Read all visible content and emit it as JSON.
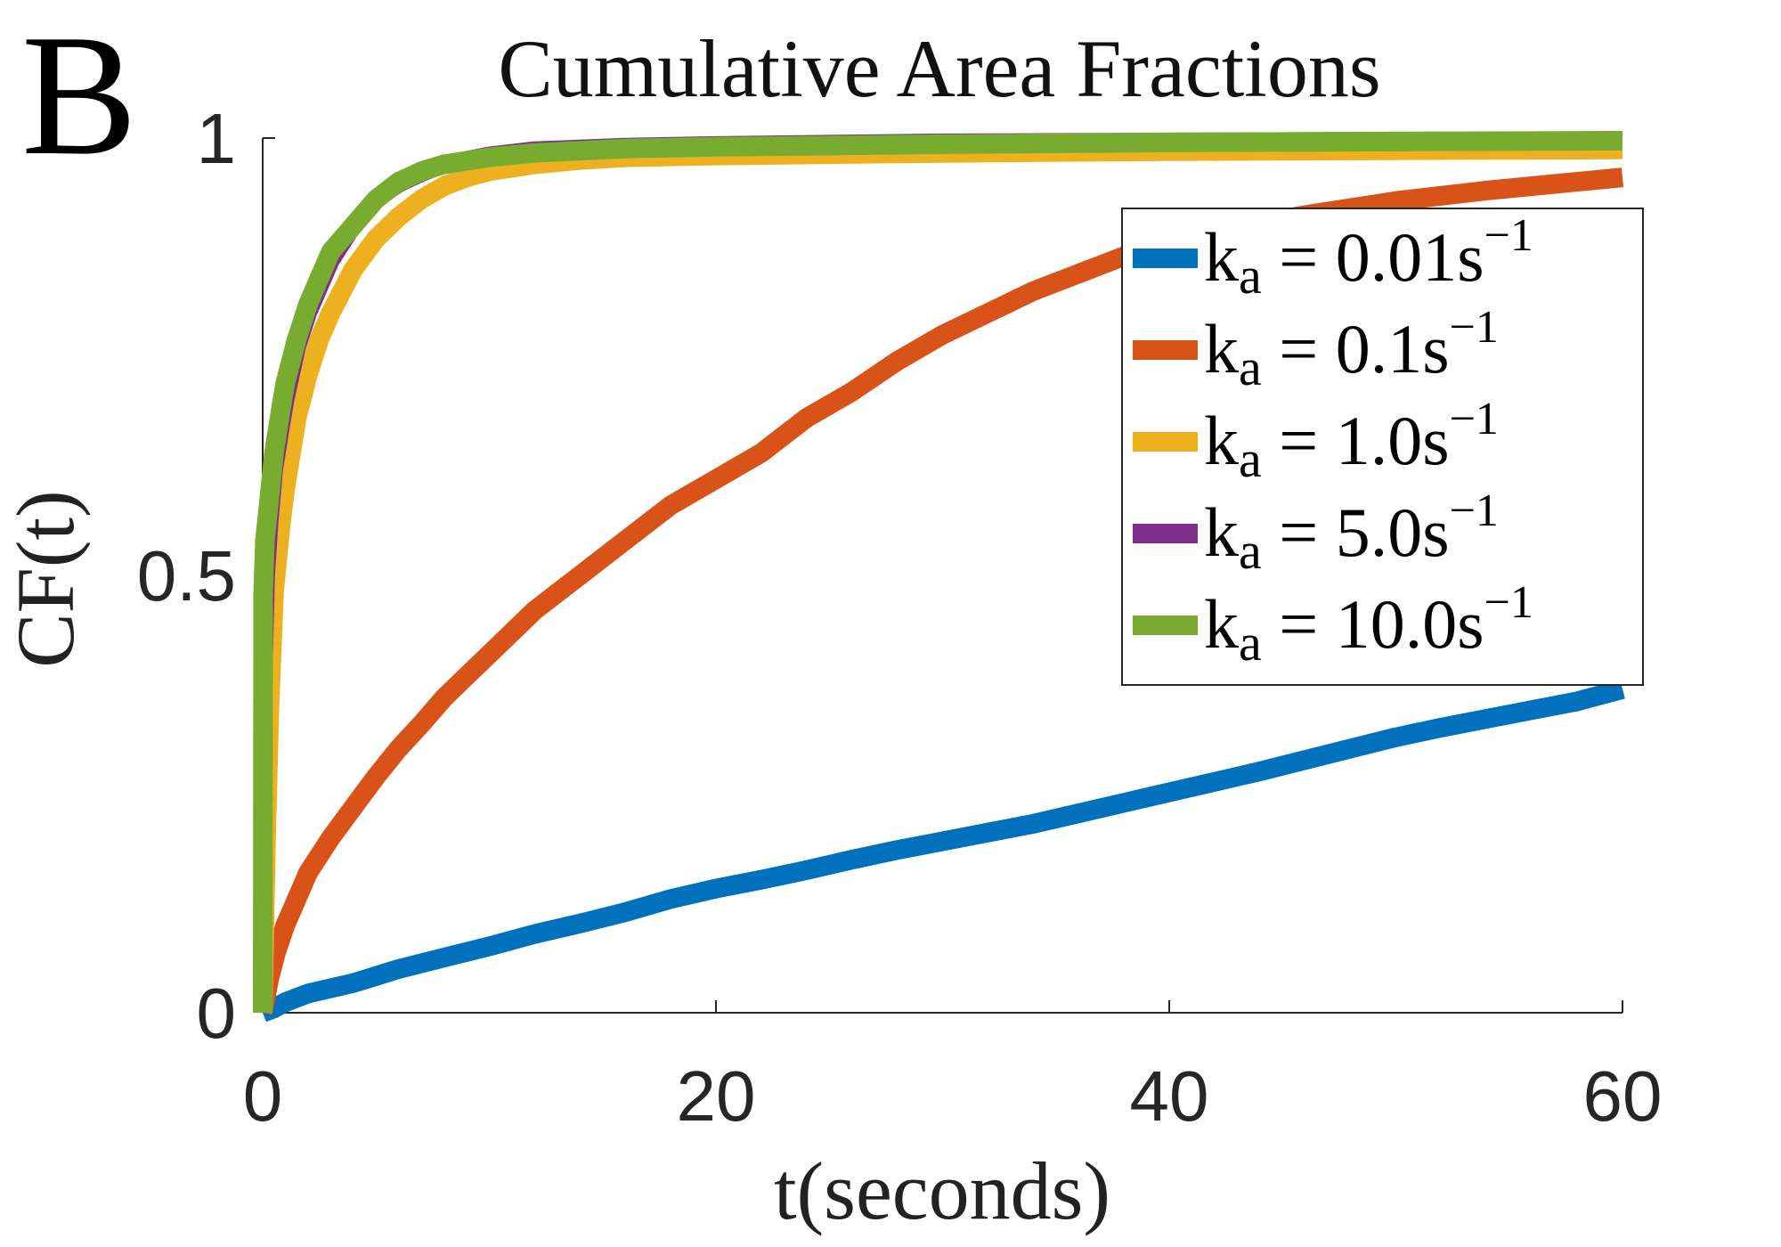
{
  "panel_label": "B",
  "chart_data": {
    "type": "line",
    "title": "Cumulative Area Fractions",
    "xlabel": "t(seconds)",
    "ylabel": "CF(t)",
    "xlim": [
      0,
      60
    ],
    "ylim": [
      0,
      1
    ],
    "xticks": [
      0,
      20,
      40,
      60
    ],
    "xtick_labels": [
      "0",
      "20",
      "40",
      "60"
    ],
    "yticks": [
      0,
      0.5,
      1
    ],
    "ytick_labels": [
      "0",
      "0.5",
      "1"
    ],
    "grid": false,
    "legend_position": "right",
    "series": [
      {
        "name": "k_a = 0.01s^-1",
        "legend": {
          "k": "k",
          "sub": "a",
          "eq": " = 0.01s",
          "sup": "−1"
        },
        "color": "#0072BD",
        "x": [
          0,
          0.5,
          1,
          2,
          3,
          4,
          5,
          6,
          8,
          10,
          12,
          14,
          16,
          18,
          20,
          22,
          24,
          26,
          28,
          30,
          32,
          34,
          36,
          38,
          40,
          42,
          44,
          46,
          48,
          50,
          52,
          54,
          56,
          58,
          60
        ],
        "y": [
          0,
          0.005,
          0.012,
          0.022,
          0.028,
          0.034,
          0.042,
          0.05,
          0.063,
          0.076,
          0.09,
          0.102,
          0.115,
          0.13,
          0.142,
          0.152,
          0.163,
          0.175,
          0.186,
          0.196,
          0.206,
          0.216,
          0.228,
          0.24,
          0.252,
          0.264,
          0.276,
          0.289,
          0.302,
          0.315,
          0.326,
          0.336,
          0.346,
          0.356,
          0.37
        ]
      },
      {
        "name": "k_a = 0.1s^-1",
        "legend": {
          "k": "k",
          "sub": "a",
          "eq": " = 0.1s",
          "sup": "−1"
        },
        "color": "#D95319",
        "x": [
          0,
          0.3,
          0.6,
          1,
          1.5,
          2,
          3,
          4,
          5,
          6,
          7,
          8,
          9,
          10,
          12,
          14,
          16,
          18,
          20,
          22,
          24,
          26,
          28,
          30,
          32,
          34,
          36,
          38,
          40,
          42,
          44,
          46,
          48,
          50,
          52,
          54,
          56,
          58,
          60
        ],
        "y": [
          0,
          0.04,
          0.07,
          0.1,
          0.13,
          0.16,
          0.2,
          0.235,
          0.27,
          0.302,
          0.33,
          0.36,
          0.385,
          0.41,
          0.46,
          0.5,
          0.54,
          0.58,
          0.61,
          0.64,
          0.68,
          0.71,
          0.745,
          0.775,
          0.8,
          0.825,
          0.845,
          0.865,
          0.88,
          0.892,
          0.903,
          0.912,
          0.92,
          0.928,
          0.934,
          0.94,
          0.945,
          0.95,
          0.955
        ]
      },
      {
        "name": "k_a = 1.0s^-1",
        "legend": {
          "k": "k",
          "sub": "a",
          "eq": " = 1.0s",
          "sup": "−1"
        },
        "color": "#EDB120",
        "x": [
          0,
          0.15,
          0.3,
          0.5,
          0.8,
          1,
          1.5,
          2,
          2.5,
          3,
          4,
          5,
          6,
          7,
          8,
          9,
          10,
          12,
          14,
          16,
          20,
          30,
          40,
          50,
          60
        ],
        "y": [
          0,
          0.2,
          0.35,
          0.48,
          0.56,
          0.6,
          0.68,
          0.73,
          0.77,
          0.8,
          0.85,
          0.885,
          0.91,
          0.93,
          0.945,
          0.955,
          0.962,
          0.97,
          0.975,
          0.978,
          0.98,
          0.983,
          0.985,
          0.986,
          0.987
        ]
      },
      {
        "name": "k_a = 5.0s^-1",
        "legend": {
          "k": "k",
          "sub": "a",
          "eq": " = 5.0s",
          "sup": "−1"
        },
        "color": "#7E2F8E",
        "x": [
          0,
          0.05,
          0.15,
          0.3,
          0.5,
          0.8,
          1,
          1.5,
          2,
          3,
          4,
          5,
          6,
          7,
          8,
          10,
          12,
          16,
          20,
          30,
          40,
          50,
          60
        ],
        "y": [
          0,
          0.4,
          0.5,
          0.56,
          0.62,
          0.67,
          0.7,
          0.76,
          0.8,
          0.86,
          0.9,
          0.93,
          0.948,
          0.96,
          0.97,
          0.98,
          0.986,
          0.99,
          0.992,
          0.995,
          0.996,
          0.997,
          0.997
        ]
      },
      {
        "name": "k_a = 10.0s^-1",
        "legend": {
          "k": "k",
          "sub": "a",
          "eq": " = 10.0s",
          "sup": "−1"
        },
        "color": "#77AC30",
        "x": [
          0,
          0.02,
          0.1,
          0.3,
          0.5,
          0.8,
          1,
          1.5,
          2,
          3,
          4,
          5,
          6,
          7,
          8,
          10,
          12,
          16,
          20,
          30,
          40,
          50,
          60
        ],
        "y": [
          0,
          0.48,
          0.54,
          0.59,
          0.64,
          0.69,
          0.72,
          0.77,
          0.81,
          0.87,
          0.9,
          0.93,
          0.95,
          0.962,
          0.97,
          0.978,
          0.983,
          0.988,
          0.99,
          0.993,
          0.995,
          0.996,
          0.997
        ]
      }
    ]
  }
}
